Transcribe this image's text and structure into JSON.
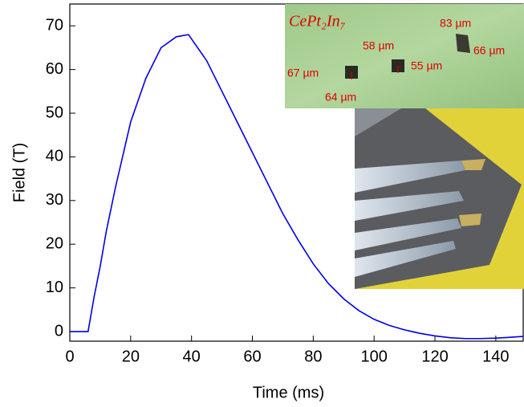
{
  "chart_data": {
    "type": "line",
    "x_label": "Time (ms)",
    "y_label": "Field (T)",
    "x": [
      0,
      6,
      8,
      10,
      12,
      15,
      20,
      25,
      30,
      35,
      39,
      45,
      50,
      55,
      60,
      65,
      70,
      75,
      80,
      85,
      90,
      95,
      100,
      105,
      110,
      115,
      120,
      125,
      130,
      135,
      140,
      145,
      149
    ],
    "series": [
      {
        "color": "#0000e6",
        "values": [
          0,
          0,
          8,
          15,
          23,
          33,
          48,
          58,
          65,
          67.5,
          68,
          62,
          55,
          48,
          41,
          34,
          27,
          21,
          15.5,
          11,
          7.5,
          4.8,
          2.8,
          1.4,
          0.4,
          -0.4,
          -1,
          -1.4,
          -1.6,
          -1.6,
          -1.5,
          -1.3,
          -1.1
        ]
      }
    ],
    "xlim": [
      0,
      149
    ],
    "xticks": [
      0,
      20,
      40,
      60,
      80,
      100,
      120,
      140
    ],
    "ylim": [
      -2.2,
      75
    ],
    "yticks": [
      0,
      10,
      20,
      30,
      40,
      50,
      60,
      70
    ],
    "annotations": [
      "CePt₂In₇",
      "83 µm",
      "58 µm",
      "66 µm",
      "67 µm",
      "55 µm",
      "64 µm"
    ]
  }
}
